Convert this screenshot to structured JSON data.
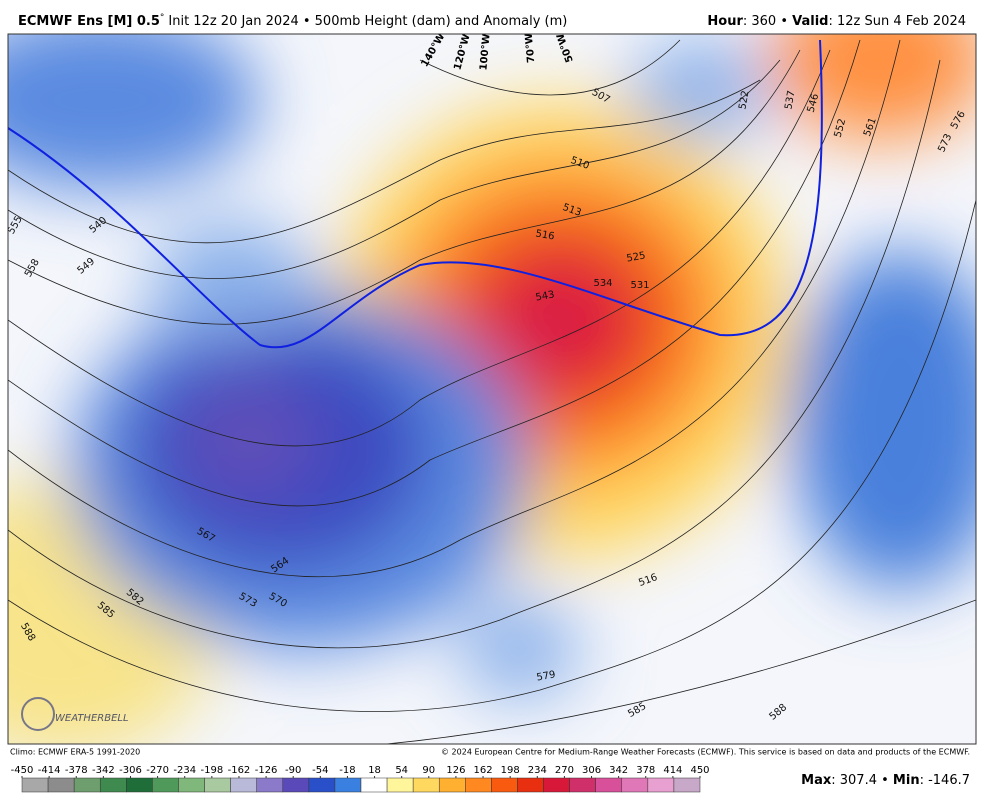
{
  "header": {
    "model": "ECMWF Ens [M] 0.5",
    "degree": "°",
    "init": "Init 12z 20 Jan 2024 • 500mb Height (dam) and Anomaly (m)",
    "hour_label": "Hour",
    "hour_value": ": 360 • ",
    "valid_label": "Valid",
    "valid_value": ": 12z Sun 4 Feb 2024"
  },
  "map": {
    "longitudes": [
      "140°W",
      "120°W",
      "100°W",
      "70°W",
      "50°W"
    ],
    "contour_labels": [
      "555",
      "558",
      "540",
      "549",
      "567",
      "564",
      "573",
      "570",
      "582",
      "585",
      "588",
      "579",
      "585",
      "588",
      "507",
      "510",
      "513",
      "516",
      "525",
      "534",
      "531",
      "543",
      "522",
      "537",
      "546",
      "552",
      "561",
      "573",
      "576",
      "516"
    ],
    "logo": "WEATHERBELL"
  },
  "footer": {
    "climo": "Climo: ECMWF ERA-5 1991-2020",
    "copyright": "© 2024 European Centre for Medium-Range Weather Forecasts (ECMWF). This service is based on data and products of the ECMWF.",
    "max_label": "Max",
    "max_value": ": 307.4 • ",
    "min_label": "Min",
    "min_value": ": -146.7"
  },
  "colorbar": {
    "ticks": [
      -450,
      -414,
      -378,
      -342,
      -306,
      -270,
      -234,
      -198,
      -162,
      -126,
      -90,
      -54,
      -18,
      18,
      54,
      90,
      126,
      162,
      198,
      234,
      270,
      306,
      342,
      378,
      414,
      450
    ],
    "colors": [
      "#a8a8a8",
      "#8c8c8c",
      "#6e9e6e",
      "#3f8a4f",
      "#1f6e3a",
      "#4f9a5a",
      "#7fb87a",
      "#a9c9a0",
      "#b9b9d9",
      "#8a7ac9",
      "#5a4ab9",
      "#2a50c9",
      "#3a80e0",
      "#ffffff",
      "#fff59a",
      "#ffd860",
      "#ffb030",
      "#ff8820",
      "#f85a10",
      "#e83010",
      "#d81838",
      "#d0306a",
      "#d8509a",
      "#e078b8",
      "#e8a0d0",
      "#c8a8c8"
    ]
  }
}
